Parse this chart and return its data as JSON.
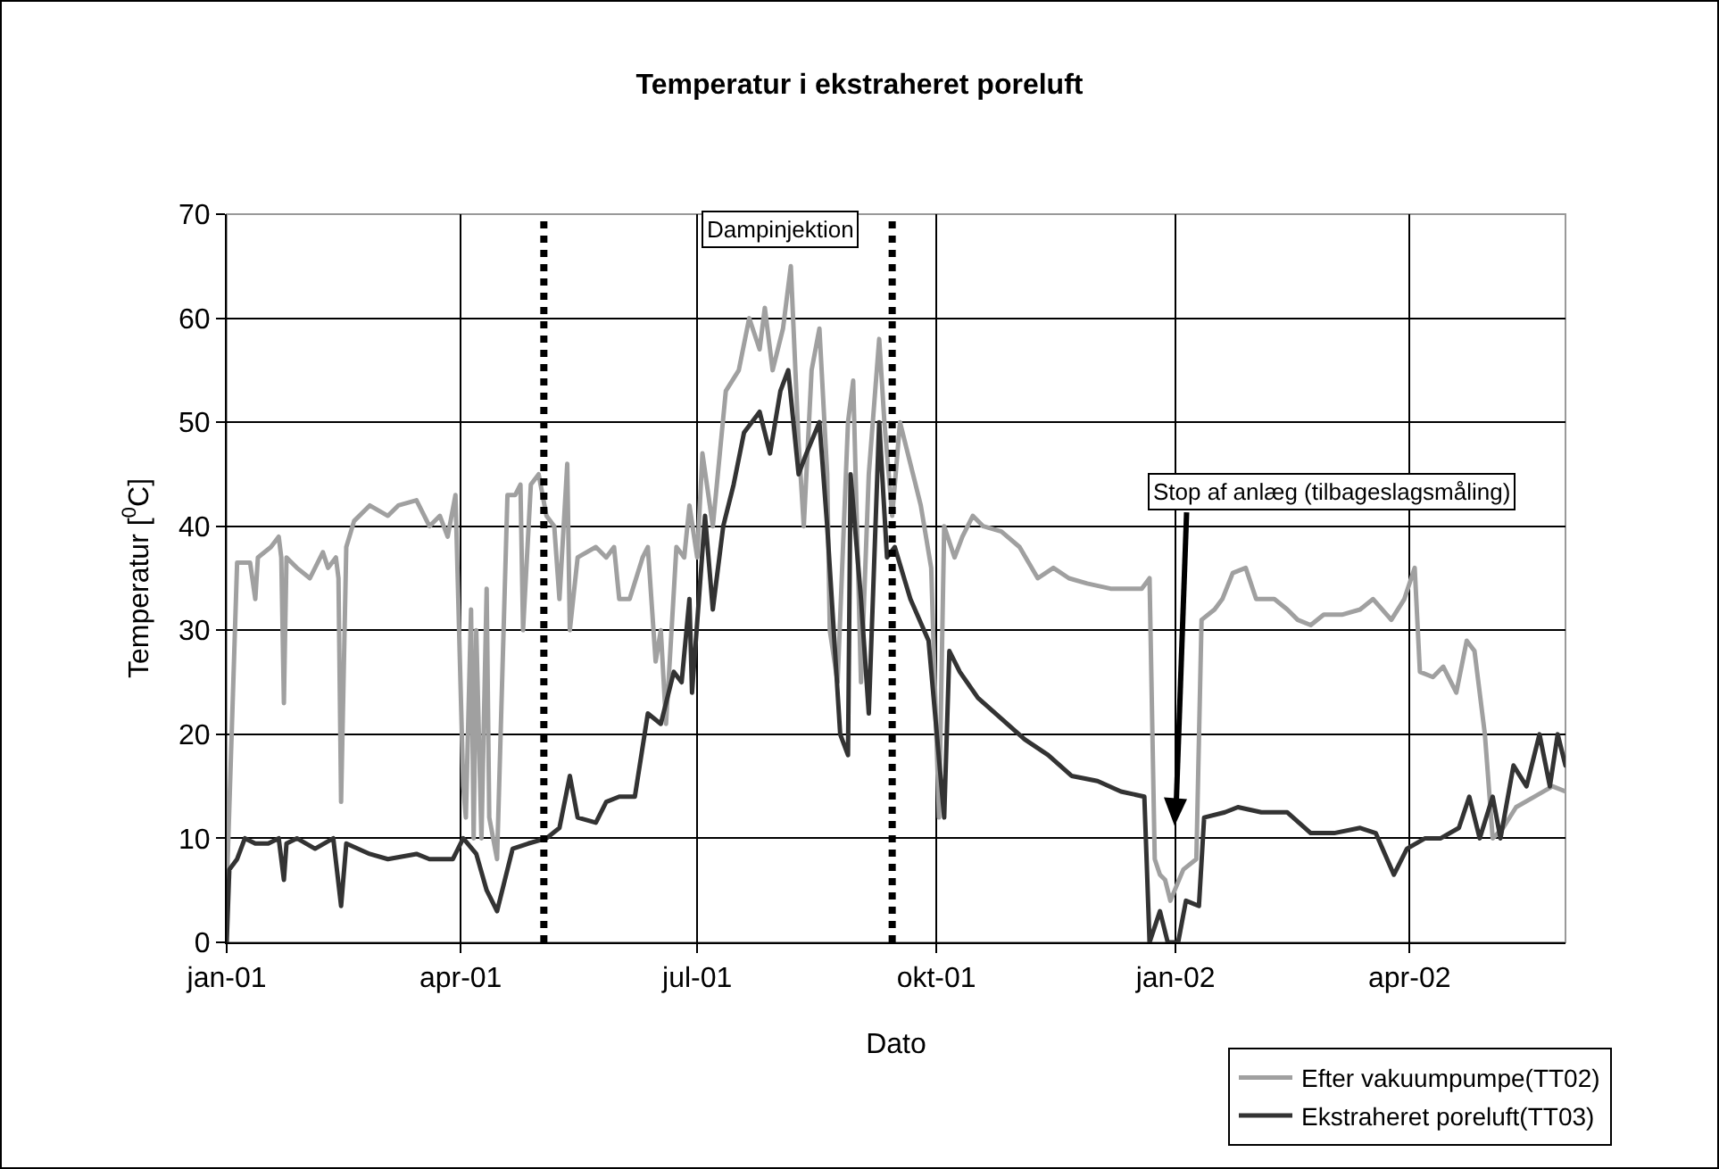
{
  "chart_data": {
    "type": "line",
    "title": "Temperatur i ekstraheret poreluft",
    "xlabel": "Dato",
    "ylabel": "Temperatur [$^{0}$C]",
    "xlim": [
      "2001-01-01",
      "2002-05-31"
    ],
    "xticks": [
      {
        "value": "2001-01-01",
        "label": "jan-01"
      },
      {
        "value": "2001-04-01",
        "label": "apr-01"
      },
      {
        "value": "2001-07-01",
        "label": "jul-01"
      },
      {
        "value": "2001-10-01",
        "label": "okt-01"
      },
      {
        "value": "2002-01-01",
        "label": "jan-02"
      },
      {
        "value": "2002-04-01",
        "label": "apr-02"
      }
    ],
    "ylim": [
      0,
      70
    ],
    "yticks": [
      0,
      10,
      20,
      30,
      40,
      50,
      60,
      70
    ],
    "grid": true,
    "legend": "bottom right",
    "line_style": "solid",
    "marker": "none",
    "ref_lines": [
      {
        "axis": "x",
        "value": "2001-05-03",
        "color": "#000000",
        "line_style": "dotted"
      },
      {
        "axis": "x",
        "value": "2001-09-14",
        "color": "#000000",
        "line_style": "dotted"
      }
    ],
    "annotations": [
      "Dampinjektion",
      "Stop af anlæg (tilbageslagsmåling)"
    ],
    "series": [
      {
        "name": "Efter vakuumpumpe(TT02)",
        "color": "#a0a0a0",
        "x": [
          "2001-01-01",
          "2001-01-05",
          "2001-01-10",
          "2001-01-12",
          "2001-01-13",
          "2001-01-18",
          "2001-01-21",
          "2001-01-22",
          "2001-01-23",
          "2001-01-24",
          "2001-01-28",
          "2001-02-02",
          "2001-02-07",
          "2001-02-09",
          "2001-02-12",
          "2001-02-13",
          "2001-02-14",
          "2001-02-16",
          "2001-02-19",
          "2001-02-25",
          "2001-03-04",
          "2001-03-08",
          "2001-03-15",
          "2001-03-20",
          "2001-03-24",
          "2001-03-27",
          "2001-03-30",
          "2001-04-02",
          "2001-04-03",
          "2001-04-05",
          "2001-04-06",
          "2001-04-07",
          "2001-04-09",
          "2001-04-11",
          "2001-04-12",
          "2001-04-15",
          "2001-04-19",
          "2001-04-22",
          "2001-04-24",
          "2001-04-25",
          "2001-04-28",
          "2001-05-01",
          "2001-05-04",
          "2001-05-07",
          "2001-05-09",
          "2001-05-12",
          "2001-05-13",
          "2001-05-16",
          "2001-05-23",
          "2001-05-27",
          "2001-05-30",
          "2001-06-01",
          "2001-06-05",
          "2001-06-10",
          "2001-06-12",
          "2001-06-15",
          "2001-06-17",
          "2001-06-19",
          "2001-06-23",
          "2001-06-26",
          "2001-06-28",
          "2001-07-01",
          "2001-07-03",
          "2001-07-07",
          "2001-07-12",
          "2001-07-17",
          "2001-07-21",
          "2001-07-25",
          "2001-07-27",
          "2001-07-30",
          "2001-08-03",
          "2001-08-06",
          "2001-08-09",
          "2001-08-11",
          "2001-08-14",
          "2001-08-17",
          "2001-08-20",
          "2001-08-21",
          "2001-08-24",
          "2001-08-28",
          "2001-08-30",
          "2001-09-02",
          "2001-09-05",
          "2001-09-09",
          "2001-09-11",
          "2001-09-14",
          "2001-09-17",
          "2001-09-22",
          "2001-09-25",
          "2001-09-29",
          "2001-10-02",
          "2001-10-04",
          "2001-10-08",
          "2001-10-11",
          "2001-10-15",
          "2001-10-19",
          "2001-10-26",
          "2001-11-02",
          "2001-11-09",
          "2001-11-15",
          "2001-11-21",
          "2001-11-28",
          "2001-12-07",
          "2001-12-19",
          "2001-12-22",
          "2001-12-24",
          "2001-12-26",
          "2001-12-28",
          "2001-12-30",
          "2002-01-04",
          "2002-01-09",
          "2002-01-11",
          "2002-01-16",
          "2002-01-19",
          "2002-01-23",
          "2002-01-28",
          "2002-02-01",
          "2002-02-08",
          "2002-02-13",
          "2002-02-17",
          "2002-02-22",
          "2002-02-27",
          "2002-03-06",
          "2002-03-13",
          "2002-03-18",
          "2002-03-25",
          "2002-03-30",
          "2002-04-03",
          "2002-04-05",
          "2002-04-10",
          "2002-04-14",
          "2002-04-19",
          "2002-04-23",
          "2002-04-26",
          "2002-04-30",
          "2002-05-03",
          "2002-05-07",
          "2002-05-12",
          "2002-05-19",
          "2002-05-26",
          "2002-05-31"
        ],
        "values": [
          5,
          36.5,
          36.5,
          33,
          37,
          38,
          39,
          37,
          23,
          37,
          36,
          35,
          37.5,
          36,
          37,
          35,
          13.5,
          38,
          40.5,
          42,
          41,
          42,
          42.5,
          40,
          41,
          39,
          43,
          15,
          12,
          32,
          10,
          30,
          10,
          34,
          12,
          8,
          43,
          43,
          44,
          30,
          44,
          45,
          41,
          40,
          33,
          46,
          30,
          37,
          38,
          37,
          38,
          33,
          33,
          37,
          38,
          27,
          30,
          21,
          38,
          37,
          42,
          37,
          47,
          40,
          53,
          55,
          60,
          57,
          61,
          55,
          59,
          65,
          48,
          40,
          55,
          59,
          45,
          30,
          25,
          50,
          54,
          25,
          45,
          58,
          50,
          41,
          50,
          45,
          42,
          36,
          12,
          40,
          37,
          39,
          41,
          40,
          39.5,
          38,
          35,
          36,
          35,
          34.5,
          34,
          34,
          35,
          8,
          6.5,
          6,
          4,
          7,
          8,
          31,
          32,
          33,
          35.5,
          36,
          33,
          33,
          32,
          31,
          30.5,
          31.5,
          31.5,
          32,
          33,
          31,
          33,
          36,
          26,
          25.5,
          26.5,
          24,
          29,
          28,
          20,
          10,
          11,
          13,
          14,
          15,
          14.5
        ]
      },
      {
        "name": "Ekstraheret poreluft(TT03)",
        "color": "#333333",
        "x": [
          "2001-01-01",
          "2001-01-02",
          "2001-01-05",
          "2001-01-08",
          "2001-01-12",
          "2001-01-17",
          "2001-01-21",
          "2001-01-23",
          "2001-01-24",
          "2001-01-28",
          "2001-02-04",
          "2001-02-11",
          "2001-02-14",
          "2001-02-16",
          "2001-02-25",
          "2001-03-04",
          "2001-03-15",
          "2001-03-20",
          "2001-03-29",
          "2001-04-02",
          "2001-04-07",
          "2001-04-11",
          "2001-04-15",
          "2001-04-19",
          "2001-04-21",
          "2001-04-27",
          "2001-05-04",
          "2001-05-09",
          "2001-05-13",
          "2001-05-16",
          "2001-05-23",
          "2001-05-27",
          "2001-06-01",
          "2001-06-07",
          "2001-06-12",
          "2001-06-17",
          "2001-06-22",
          "2001-06-25",
          "2001-06-28",
          "2001-06-29",
          "2001-07-04",
          "2001-07-07",
          "2001-07-11",
          "2001-07-15",
          "2001-07-19",
          "2001-07-25",
          "2001-07-29",
          "2001-08-02",
          "2001-08-05",
          "2001-08-09",
          "2001-08-12",
          "2001-08-17",
          "2001-08-20",
          "2001-08-25",
          "2001-08-28",
          "2001-08-29",
          "2001-09-02",
          "2001-09-05",
          "2001-09-09",
          "2001-09-12",
          "2001-09-15",
          "2001-09-21",
          "2001-09-28",
          "2001-10-04",
          "2001-10-06",
          "2001-10-10",
          "2001-10-17",
          "2001-10-26",
          "2001-11-04",
          "2001-11-13",
          "2001-11-22",
          "2001-12-02",
          "2001-12-11",
          "2001-12-20",
          "2001-12-22",
          "2001-12-26",
          "2001-12-29",
          "2002-01-02",
          "2002-01-05",
          "2002-01-10",
          "2002-01-12",
          "2002-01-20",
          "2002-01-25",
          "2002-02-03",
          "2002-02-13",
          "2002-02-22",
          "2002-03-03",
          "2002-03-13",
          "2002-03-19",
          "2002-03-26",
          "2002-03-31",
          "2002-04-07",
          "2002-04-13",
          "2002-04-20",
          "2002-04-24",
          "2002-04-28",
          "2002-05-03",
          "2002-05-06",
          "2002-05-11",
          "2002-05-16",
          "2002-05-21",
          "2002-05-25",
          "2002-05-28",
          "2002-05-31"
        ],
        "values": [
          0,
          7,
          8,
          10,
          9.5,
          9.5,
          10,
          6,
          9.5,
          10,
          9,
          10,
          3.5,
          9.5,
          8.5,
          8,
          8.5,
          8,
          8,
          10,
          8.5,
          5,
          3,
          7,
          9,
          9.5,
          10,
          11,
          16,
          12,
          11.5,
          13.5,
          14,
          14,
          22,
          21,
          26,
          25,
          33,
          24,
          41,
          32,
          40,
          44,
          49,
          51,
          47,
          53,
          55,
          45,
          47,
          50,
          40,
          20,
          18,
          45,
          33,
          22,
          50,
          37,
          38,
          33,
          29,
          12,
          28,
          26,
          23.5,
          21.5,
          19.5,
          18,
          16,
          15.5,
          14.5,
          14,
          0,
          3,
          0,
          0,
          4,
          3.5,
          12,
          12.5,
          13,
          12.5,
          12.5,
          10.5,
          10.5,
          11,
          10.5,
          6.5,
          9,
          10,
          10,
          11,
          14,
          10,
          14,
          10,
          17,
          15,
          20,
          15,
          20,
          17
        ]
      }
    ]
  }
}
